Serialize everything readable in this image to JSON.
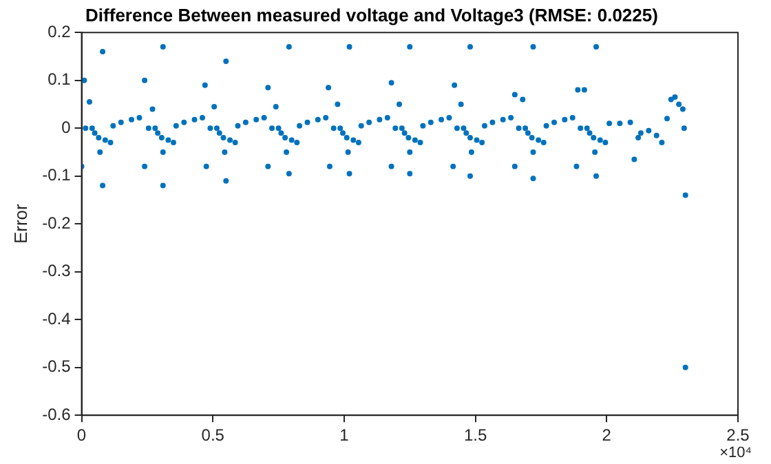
{
  "chart_data": {
    "type": "scatter",
    "title": "Difference Between measured voltage and Voltage3 (RMSE: 0.0225)",
    "ylabel": "Error",
    "annotations": [
      "×10⁴"
    ],
    "xlim": [
      0,
      2.5
    ],
    "xticks": [
      0,
      0.5,
      1,
      1.5,
      2,
      2.5
    ],
    "ylim": [
      -0.6,
      0.2
    ],
    "yticks": [
      -0.6,
      -0.5,
      -0.4,
      -0.3,
      -0.2,
      -0.1,
      0,
      0.1,
      0.2
    ],
    "grid": false,
    "legend": false,
    "marker": "circle",
    "series": [
      {
        "color": "#0072bd",
        "x": [
          0,
          0.015,
          0.03,
          0.04,
          0.05,
          0.065,
          0.07,
          0.09,
          0.11,
          0.12,
          0.15,
          0.19,
          0.22,
          0.24,
          0.255,
          0.27,
          0.28,
          0.29,
          0.305,
          0.31,
          0.33,
          0.35,
          0.36,
          0.39,
          0.43,
          0.46,
          0.475,
          0.49,
          0.505,
          0.515,
          0.525,
          0.54,
          0.545,
          0.565,
          0.585,
          0.595,
          0.625,
          0.665,
          0.695,
          0.71,
          0.725,
          0.74,
          0.75,
          0.76,
          0.775,
          0.78,
          0.8,
          0.82,
          0.83,
          0.86,
          0.9,
          0.93,
          0.945,
          0.96,
          0.975,
          0.985,
          0.995,
          1.01,
          1.015,
          1.035,
          1.055,
          1.065,
          1.095,
          1.135,
          1.165,
          1.18,
          1.195,
          1.21,
          1.22,
          1.23,
          1.245,
          1.25,
          1.27,
          1.29,
          1.3,
          1.33,
          1.37,
          1.4,
          1.415,
          1.43,
          1.445,
          1.455,
          1.465,
          1.48,
          1.485,
          1.505,
          1.525,
          1.535,
          1.565,
          1.605,
          1.635,
          1.65,
          1.665,
          1.68,
          1.69,
          1.7,
          1.715,
          1.72,
          1.74,
          1.76,
          1.77,
          1.8,
          1.84,
          1.87,
          1.885,
          1.9,
          1.915,
          1.925,
          1.935,
          1.95,
          1.955,
          1.975,
          1.995,
          2.01,
          2.05,
          2.09,
          2.105,
          2.12,
          2.13,
          2.16,
          2.19,
          2.21,
          2.23,
          2.245,
          2.26,
          2.275,
          2.29,
          2.295,
          2.3,
          0.08,
          0.08,
          0.01,
          0.31,
          0.24,
          0.31,
          0.55,
          0.47,
          0.55,
          0.79,
          0.71,
          0.79,
          1.02,
          0.94,
          1.02,
          1.25,
          1.18,
          1.25,
          1.48,
          1.42,
          1.48,
          1.72,
          1.65,
          1.72,
          1.96,
          1.89,
          1.96,
          2.3
        ],
        "values": [
          -0.08,
          0,
          0.055,
          0,
          -0.01,
          -0.02,
          -0.05,
          -0.025,
          -0.03,
          0.005,
          0.012,
          0.018,
          0.022,
          -0.08,
          0,
          0.04,
          0,
          -0.01,
          -0.02,
          -0.05,
          -0.025,
          -0.03,
          0.005,
          0.012,
          0.018,
          0.022,
          -0.08,
          0,
          0.045,
          0,
          -0.01,
          -0.02,
          -0.05,
          -0.025,
          -0.03,
          0.005,
          0.012,
          0.018,
          0.022,
          -0.08,
          0,
          0.045,
          0,
          -0.01,
          -0.02,
          -0.05,
          -0.025,
          -0.03,
          0.005,
          0.012,
          0.018,
          0.022,
          -0.08,
          0,
          0.05,
          0,
          -0.01,
          -0.02,
          -0.05,
          -0.025,
          -0.03,
          0.005,
          0.012,
          0.018,
          0.022,
          -0.08,
          0,
          0.05,
          0,
          -0.01,
          -0.02,
          -0.05,
          -0.025,
          -0.03,
          0.005,
          0.012,
          0.018,
          0.022,
          -0.08,
          0,
          0.05,
          0,
          -0.01,
          -0.02,
          -0.05,
          -0.025,
          -0.03,
          0.005,
          0.012,
          0.018,
          0.022,
          -0.08,
          0,
          0.06,
          0,
          -0.01,
          -0.02,
          -0.05,
          -0.025,
          -0.03,
          0.005,
          0.012,
          0.018,
          0.022,
          -0.08,
          0,
          0.08,
          0,
          -0.01,
          -0.02,
          -0.05,
          -0.025,
          -0.03,
          0.01,
          0.01,
          0.012,
          -0.065,
          -0.02,
          -0.01,
          -0.005,
          -0.015,
          -0.03,
          0.02,
          0.06,
          0.065,
          0.05,
          0.04,
          0,
          -0.14,
          0.16,
          -0.12,
          0.1,
          0.17,
          0.1,
          -0.12,
          0.14,
          0.09,
          -0.11,
          0.17,
          0.085,
          -0.095,
          0.17,
          0.085,
          -0.095,
          0.17,
          0.095,
          -0.095,
          0.17,
          0.09,
          -0.1,
          0.17,
          0.07,
          -0.105,
          0.17,
          0.08,
          -0.1,
          -0.5
        ]
      }
    ]
  }
}
